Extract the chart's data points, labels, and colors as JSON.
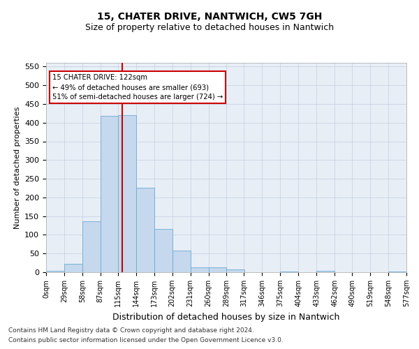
{
  "title": "15, CHATER DRIVE, NANTWICH, CW5 7GH",
  "subtitle": "Size of property relative to detached houses in Nantwich",
  "xlabel": "Distribution of detached houses by size in Nantwich",
  "ylabel": "Number of detached properties",
  "bar_values": [
    3,
    22,
    137,
    418,
    420,
    225,
    115,
    58,
    13,
    14,
    7,
    0,
    0,
    2,
    0,
    3,
    0,
    0,
    0,
    2
  ],
  "bin_edges": [
    0,
    29,
    58,
    87,
    115,
    144,
    173,
    202,
    231,
    260,
    289,
    317,
    346,
    375,
    404,
    433,
    462,
    490,
    519,
    548,
    577
  ],
  "tick_labels": [
    "0sqm",
    "29sqm",
    "58sqm",
    "87sqm",
    "115sqm",
    "144sqm",
    "173sqm",
    "202sqm",
    "231sqm",
    "260sqm",
    "289sqm",
    "317sqm",
    "346sqm",
    "375sqm",
    "404sqm",
    "433sqm",
    "462sqm",
    "490sqm",
    "519sqm",
    "548sqm",
    "577sqm"
  ],
  "bar_color": "#c5d8ed",
  "bar_edge_color": "#6aaad4",
  "vline_x": 122,
  "vline_color": "#cc0000",
  "annotation_line1": "15 CHATER DRIVE: 122sqm",
  "annotation_line2": "← 49% of detached houses are smaller (693)",
  "annotation_line3": "51% of semi-detached houses are larger (724) →",
  "annotation_box_color": "#ffffff",
  "annotation_box_edge": "#cc0000",
  "ylim_max": 560,
  "yticks": [
    0,
    50,
    100,
    150,
    200,
    250,
    300,
    350,
    400,
    450,
    500,
    550
  ],
  "grid_color": "#c8d4e4",
  "background_color": "#e8eef6",
  "footer_line1": "Contains HM Land Registry data © Crown copyright and database right 2024.",
  "footer_line2": "Contains public sector information licensed under the Open Government Licence v3.0.",
  "title_fontsize": 10,
  "subtitle_fontsize": 9,
  "axis_label_fontsize": 8,
  "tick_fontsize": 7,
  "footer_fontsize": 6.5
}
